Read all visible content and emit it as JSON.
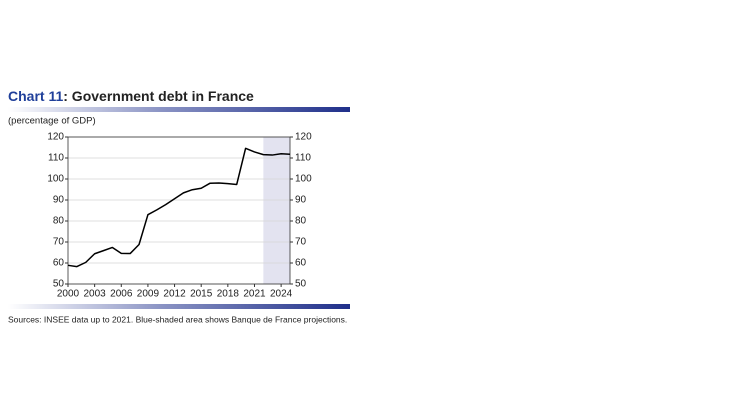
{
  "chart_data": {
    "type": "line",
    "title_prefix": "Chart 11",
    "title": ": Government debt in France",
    "subtitle": "(percentage of GDP)",
    "source": "Sources: INSEE data up to 2021. Blue-shaded area shows Banque de France projections.",
    "x": [
      2000,
      2001,
      2002,
      2003,
      2004,
      2005,
      2006,
      2007,
      2008,
      2009,
      2010,
      2011,
      2012,
      2013,
      2014,
      2015,
      2016,
      2017,
      2018,
      2019,
      2020,
      2021,
      2022,
      2023,
      2024,
      2025
    ],
    "series": [
      {
        "name": "Government debt",
        "color": "#000000",
        "values": [
          58.9,
          58.3,
          60.3,
          64.4,
          65.9,
          67.4,
          64.6,
          64.5,
          68.8,
          83.0,
          85.3,
          87.8,
          90.6,
          93.4,
          94.9,
          95.6,
          98.0,
          98.1,
          97.8,
          97.4,
          114.6,
          112.9,
          111.6,
          111.4,
          112.0,
          111.8
        ]
      }
    ],
    "xlim": [
      2000,
      2025
    ],
    "xticks": [
      2000,
      2003,
      2006,
      2009,
      2012,
      2015,
      2018,
      2021,
      2024
    ],
    "ylim": [
      50,
      120
    ],
    "yticks": [
      50,
      60,
      70,
      80,
      90,
      100,
      110,
      120
    ],
    "y2lim": [
      50,
      120
    ],
    "y2ticks": [
      50,
      60,
      70,
      80,
      90,
      100,
      110,
      120
    ],
    "shaded_xlim": [
      2022,
      2025
    ],
    "shade_color": "#e3e3f0",
    "grid": true
  }
}
